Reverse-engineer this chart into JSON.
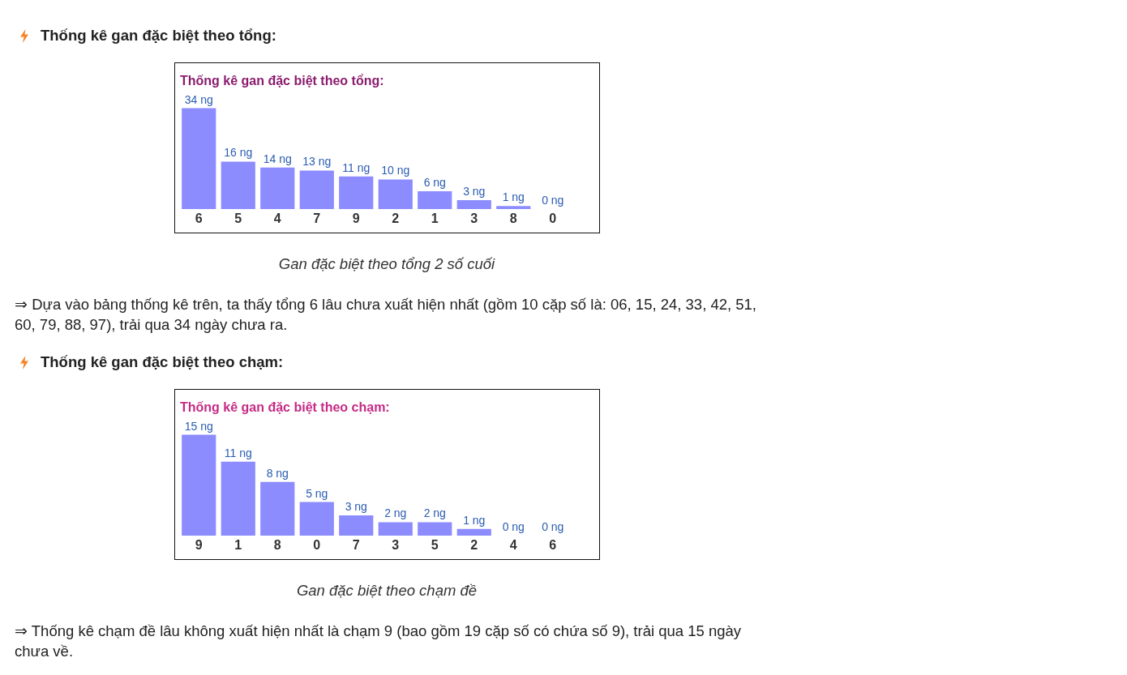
{
  "chart_data": [
    {
      "type": "bar",
      "title": "Thống kê gan đặc biệt theo tổng:",
      "annotations": [
        "Thống kê gan đặc biệt theo tổng:",
        "Gan đặc biệt theo tổng 2 số cuối",
        "⇒ Dựa vào bảng thống kê trên, ta thấy tổng 6 lâu chưa xuất hiện nhất (gồm 10 cặp số là: 06, 15, 24, 33, 42, 51, 60, 79, 88, 97), trải qua 34 ngày chưa ra."
      ],
      "categories": [
        "6",
        "5",
        "4",
        "7",
        "9",
        "2",
        "1",
        "3",
        "8",
        "0"
      ],
      "values": [
        34,
        16,
        14,
        13,
        11,
        10,
        6,
        3,
        1,
        0
      ],
      "value_labels": [
        "34 ng",
        "16 ng",
        "14 ng",
        "13 ng",
        "11 ng",
        "10 ng",
        "6 ng",
        "3 ng",
        "1 ng",
        "0 ng"
      ],
      "color": "#8c8cff",
      "tick_labels": "x"
    },
    {
      "type": "bar",
      "title": "Thống kê gan đặc biệt theo chạm:",
      "annotations": [
        "Thống kê gan đặc biệt theo chạm:",
        "Gan đặc biệt theo chạm đề",
        "⇒ Thống kê chạm đề lâu không xuất hiện nhất là chạm 9 (bao gồm 19 cặp số có chứa số 9), trải qua 15 ngày chưa về."
      ],
      "categories": [
        "9",
        "1",
        "8",
        "0",
        "7",
        "3",
        "5",
        "2",
        "4",
        "6"
      ],
      "values": [
        15,
        11,
        8,
        5,
        3,
        2,
        2,
        1,
        0,
        0
      ],
      "value_labels": [
        "15 ng",
        "11 ng",
        "8 ng",
        "5 ng",
        "3 ng",
        "2 ng",
        "2 ng",
        "1 ng",
        "0 ng",
        "0 ng"
      ],
      "color": "#8c8cff",
      "tick_labels": "x"
    }
  ]
}
